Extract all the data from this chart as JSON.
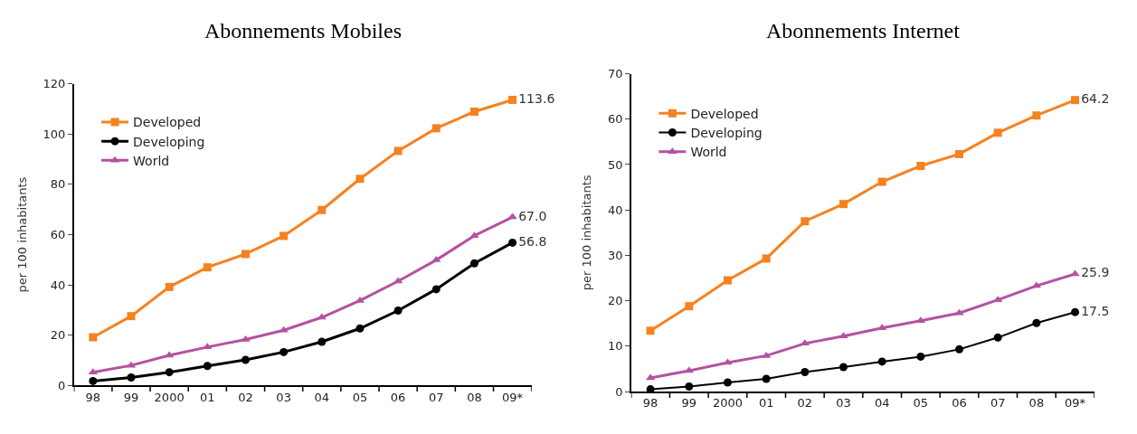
{
  "chart_data": [
    {
      "type": "line",
      "title": "Abonnements Mobiles",
      "ylabel": "per 100 inhabitants",
      "categories": [
        "98",
        "99",
        "2000",
        "01",
        "02",
        "03",
        "04",
        "05",
        "06",
        "07",
        "08",
        "09*"
      ],
      "ylim": [
        0,
        120
      ],
      "yticks": [
        0,
        20,
        40,
        60,
        80,
        100,
        120
      ],
      "legend": "top left",
      "series": [
        {
          "name": "Developed",
          "color": "#f58220",
          "marker": "square",
          "values": [
            19.2,
            27.6,
            39.2,
            47.0,
            52.3,
            59.5,
            69.8,
            82.2,
            93.3,
            102.3,
            108.9,
            113.6
          ],
          "value_labels": [
            null,
            null,
            null,
            null,
            null,
            null,
            null,
            null,
            null,
            null,
            null,
            "113.6"
          ]
        },
        {
          "name": "Developing",
          "color": "#000000",
          "marker": "circle",
          "values": [
            1.8,
            3.2,
            5.3,
            7.8,
            10.2,
            13.3,
            17.4,
            22.7,
            29.8,
            38.3,
            48.6,
            56.8
          ],
          "value_labels": [
            null,
            null,
            null,
            null,
            null,
            null,
            null,
            null,
            null,
            null,
            null,
            "56.8"
          ]
        },
        {
          "name": "World",
          "color": "#b5529f",
          "marker": "triangle",
          "values": [
            5.3,
            8.0,
            12.0,
            15.3,
            18.3,
            22.0,
            27.1,
            33.8,
            41.5,
            49.9,
            59.6,
            67.0
          ],
          "value_labels": [
            null,
            null,
            null,
            null,
            null,
            null,
            null,
            null,
            null,
            null,
            null,
            "67.0"
          ]
        }
      ]
    },
    {
      "type": "line",
      "title": "Abonnements Internet",
      "ylabel": "per 100 inhabitants",
      "categories": [
        "98",
        "99",
        "2000",
        "01",
        "02",
        "03",
        "04",
        "05",
        "06",
        "07",
        "08",
        "09*"
      ],
      "ylim": [
        0,
        70
      ],
      "yticks": [
        0,
        10,
        20,
        30,
        40,
        50,
        60,
        70
      ],
      "legend": "top left",
      "series": [
        {
          "name": "Developed",
          "color": "#f58220",
          "marker": "square",
          "values": [
            13.4,
            18.8,
            24.5,
            29.3,
            37.5,
            41.3,
            46.2,
            49.7,
            52.3,
            57.0,
            60.8,
            64.2
          ],
          "value_labels": [
            null,
            null,
            null,
            null,
            null,
            null,
            null,
            null,
            null,
            null,
            null,
            "64.2"
          ]
        },
        {
          "name": "Developing",
          "color": "#000000",
          "marker": "circle",
          "values": [
            0.5,
            1.1,
            2.0,
            2.8,
            4.3,
            5.4,
            6.6,
            7.7,
            9.3,
            11.9,
            15.1,
            17.5
          ],
          "value_labels": [
            null,
            null,
            null,
            null,
            null,
            null,
            null,
            null,
            null,
            null,
            null,
            "17.5"
          ]
        },
        {
          "name": "World",
          "color": "#b5529f",
          "marker": "triangle",
          "values": [
            3.0,
            4.6,
            6.4,
            7.9,
            10.6,
            12.2,
            14.0,
            15.6,
            17.3,
            20.2,
            23.3,
            25.9
          ],
          "value_labels": [
            null,
            null,
            null,
            null,
            null,
            null,
            null,
            null,
            null,
            null,
            null,
            "25.9"
          ]
        }
      ]
    }
  ]
}
